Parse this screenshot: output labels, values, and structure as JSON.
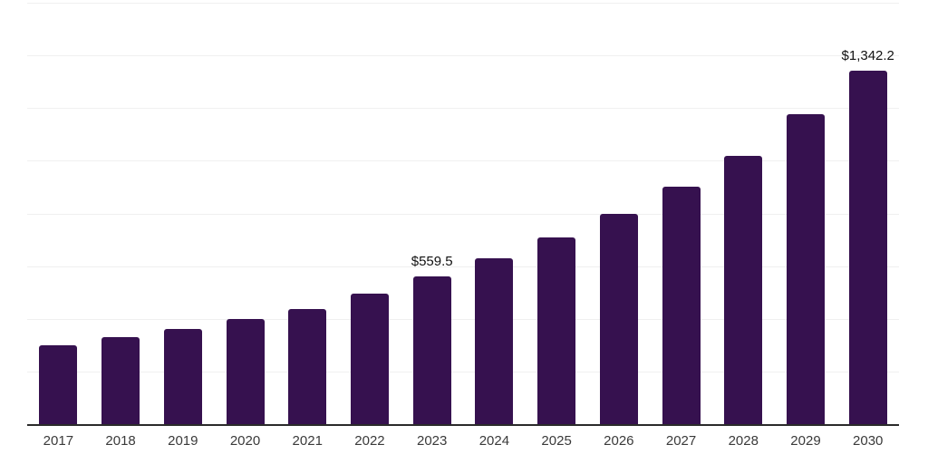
{
  "chart_data": {
    "type": "bar",
    "title": "",
    "xlabel": "",
    "ylabel": "",
    "categories": [
      "2017",
      "2018",
      "2019",
      "2020",
      "2021",
      "2022",
      "2023",
      "2024",
      "2025",
      "2026",
      "2027",
      "2028",
      "2029",
      "2030"
    ],
    "values": [
      300,
      330,
      360,
      400,
      437,
      494,
      559.5,
      629,
      708,
      797,
      900,
      1017,
      1176,
      1342.2
    ],
    "value_labels": [
      {
        "category": "2023",
        "text": "$559.5"
      },
      {
        "category": "2030",
        "text": "$1,342.2"
      }
    ],
    "ylim": [
      0,
      1600
    ],
    "gridline_step": 200,
    "grid": "horizontal-only",
    "y_axis_tick_labels_visible": false,
    "legend_position": "none",
    "colors": {
      "bar": "#36114f",
      "axis_line": "#2b2b2b",
      "gridline": "#f0f0f0",
      "tick_label": "#3a3a3a",
      "value_label": "#111111"
    }
  }
}
